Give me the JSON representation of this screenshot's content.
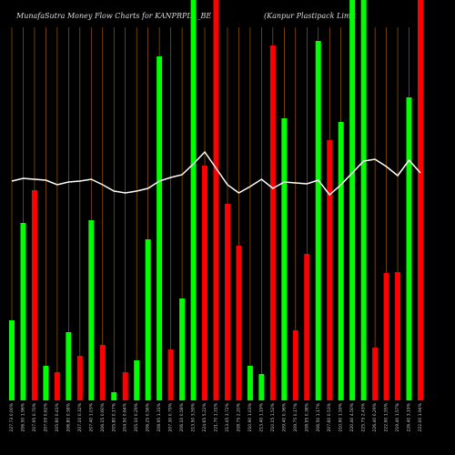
{
  "chart_data": {
    "type": "bar",
    "title": "MunafaSutra  Money Flow  Charts for KANPRPLA_BE",
    "subtitle": "(Kanpur Plastipack Limit",
    "categories": [
      "227.73 0.00%",
      "206.50 1.96%",
      "207.95 0.70%",
      "207.09 0.62%",
      "205.60 0.41%",
      "206.80 0.58%",
      "207.10 0.32%",
      "207.40 1.03%",
      "206.15 0.60%",
      "205.80 0.17%",
      "204.50 0.64%",
      "205.10 0.29%",
      "206.25 0.56%",
      "208.95 1.31%",
      "207.30 0.79%",
      "206.10 0.58%",
      "213.50 3.59%",
      "224.65 5.22%",
      "221.70 1.31%",
      "213.45 3.72%",
      "208.75 2.20%",
      "210.90 1.03%",
      "213.40 1.19%",
      "210.15 1.52%",
      "209.40 0.36%",
      "209.75 0.17%",
      "208.95 0.38%",
      "206.50 1.17%",
      "207.60 0.53%",
      "210.90 1.59%",
      "220.40 4.50%",
      "225.75 2.43%",
      "226.40 0.29%",
      "222.90 1.55%",
      "219.40 1.57%",
      "226.40 3.19%",
      "222.00 1.94%"
    ],
    "values": [
      88,
      195,
      231,
      38,
      31,
      75,
      49,
      198,
      61,
      9,
      31,
      44,
      177,
      378,
      56,
      112,
      440,
      258,
      440,
      216,
      170,
      38,
      29,
      390,
      310,
      77,
      161,
      395,
      286,
      306,
      440,
      440,
      58,
      140,
      141,
      333,
      440
    ],
    "colors": [
      "#00ff00",
      "#00ff00",
      "#ff0000",
      "#00ff00",
      "#ff0000",
      "#00ff00",
      "#ff0000",
      "#00ff00",
      "#ff0000",
      "#00ff00",
      "#ff0000",
      "#00ff00",
      "#00ff00",
      "#00ff00",
      "#ff0000",
      "#00ff00",
      "#00ff00",
      "#ff0000",
      "#ff0000",
      "#ff0000",
      "#ff0000",
      "#00ff00",
      "#00ff00",
      "#ff0000",
      "#00ff00",
      "#ff0000",
      "#ff0000",
      "#00ff00",
      "#ff0000",
      "#00ff00",
      "#00ff00",
      "#00ff00",
      "#ff0000",
      "#ff0000",
      "#ff0000",
      "#00ff00",
      "#ff0000"
    ],
    "line": {
      "color": "#ffffff",
      "values": [
        241,
        244,
        243,
        242,
        237,
        240,
        241,
        243,
        237,
        230,
        228,
        230,
        233,
        241,
        245,
        248,
        260,
        273,
        255,
        237,
        228,
        235,
        243,
        233,
        240,
        239,
        238,
        242,
        226,
        237,
        250,
        263,
        265,
        257,
        247,
        264,
        250
      ]
    },
    "ylim": [
      0,
      440
    ]
  }
}
